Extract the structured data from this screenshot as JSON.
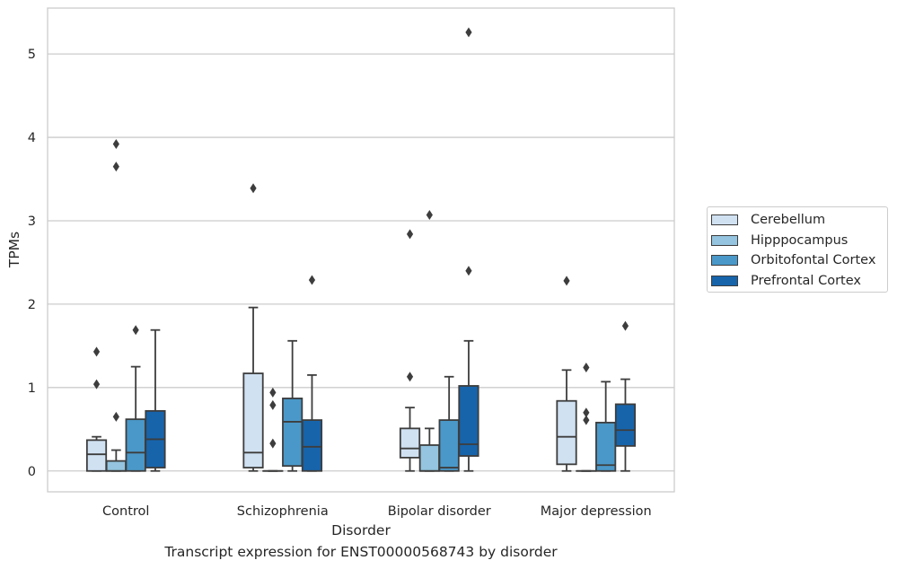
{
  "caption": "Transcript expression for ENST00000568743 by disorder",
  "chart_data": {
    "type": "box",
    "title": "",
    "xlabel": "Disorder",
    "ylabel": "TPMs",
    "ylim": [
      -0.25,
      5.55
    ],
    "yticks": [
      0,
      1,
      2,
      3,
      4,
      5
    ],
    "grid": "horizontal",
    "legend_position": "right",
    "categories": [
      "Control",
      "Schizophrenia",
      "Bipolar disorder",
      "Major depression"
    ],
    "series": [
      {
        "name": "Cerebellum",
        "color": "#d0e1f2",
        "boxes": [
          {
            "whislo": 0.0,
            "q1": 0.0,
            "med": 0.2,
            "q3": 0.37,
            "whishi": 0.41,
            "fliers": [
              1.43,
              1.04
            ]
          },
          {
            "whislo": 0.0,
            "q1": 0.04,
            "med": 0.22,
            "q3": 1.17,
            "whishi": 1.96,
            "fliers": [
              3.39
            ]
          },
          {
            "whislo": 0.0,
            "q1": 0.16,
            "med": 0.27,
            "q3": 0.51,
            "whishi": 0.76,
            "fliers": [
              1.13,
              2.84
            ]
          },
          {
            "whislo": 0.0,
            "q1": 0.08,
            "med": 0.41,
            "q3": 0.84,
            "whishi": 1.21,
            "fliers": [
              2.28
            ]
          }
        ]
      },
      {
        "name": "Hipppocampus",
        "color": "#94c4df",
        "boxes": [
          {
            "whislo": 0.0,
            "q1": 0.0,
            "med": 0.0,
            "q3": 0.12,
            "whishi": 0.25,
            "fliers": [
              0.65,
              3.65,
              3.92
            ]
          },
          {
            "whislo": 0.0,
            "q1": 0.0,
            "med": 0.0,
            "q3": 0.0,
            "whishi": 0.0,
            "fliers": [
              0.33,
              0.79,
              0.94
            ]
          },
          {
            "whislo": 0.0,
            "q1": 0.0,
            "med": 0.0,
            "q3": 0.31,
            "whishi": 0.51,
            "fliers": [
              3.07
            ]
          },
          {
            "whislo": 0.0,
            "q1": 0.0,
            "med": 0.0,
            "q3": 0.0,
            "whishi": 0.0,
            "fliers": [
              0.61,
              0.7,
              1.24
            ]
          }
        ]
      },
      {
        "name": "Orbitofontal Cortex",
        "color": "#4a98c9",
        "boxes": [
          {
            "whislo": 0.0,
            "q1": 0.0,
            "med": 0.22,
            "q3": 0.62,
            "whishi": 1.25,
            "fliers": [
              1.69
            ]
          },
          {
            "whislo": 0.0,
            "q1": 0.06,
            "med": 0.59,
            "q3": 0.87,
            "whishi": 1.56,
            "fliers": []
          },
          {
            "whislo": 0.0,
            "q1": 0.0,
            "med": 0.04,
            "q3": 0.61,
            "whishi": 1.13,
            "fliers": []
          },
          {
            "whislo": 0.0,
            "q1": 0.0,
            "med": 0.07,
            "q3": 0.58,
            "whishi": 1.07,
            "fliers": []
          }
        ]
      },
      {
        "name": "Prefrontal Cortex",
        "color": "#1764ab",
        "boxes": [
          {
            "whislo": 0.0,
            "q1": 0.04,
            "med": 0.38,
            "q3": 0.72,
            "whishi": 1.69,
            "fliers": []
          },
          {
            "whislo": 0.0,
            "q1": 0.0,
            "med": 0.29,
            "q3": 0.61,
            "whishi": 1.15,
            "fliers": [
              2.29
            ]
          },
          {
            "whislo": 0.0,
            "q1": 0.18,
            "med": 0.32,
            "q3": 1.02,
            "whishi": 1.56,
            "fliers": [
              2.4,
              5.26
            ]
          },
          {
            "whislo": 0.0,
            "q1": 0.3,
            "med": 0.49,
            "q3": 0.8,
            "whishi": 1.1,
            "fliers": [
              1.74
            ]
          }
        ]
      }
    ]
  }
}
